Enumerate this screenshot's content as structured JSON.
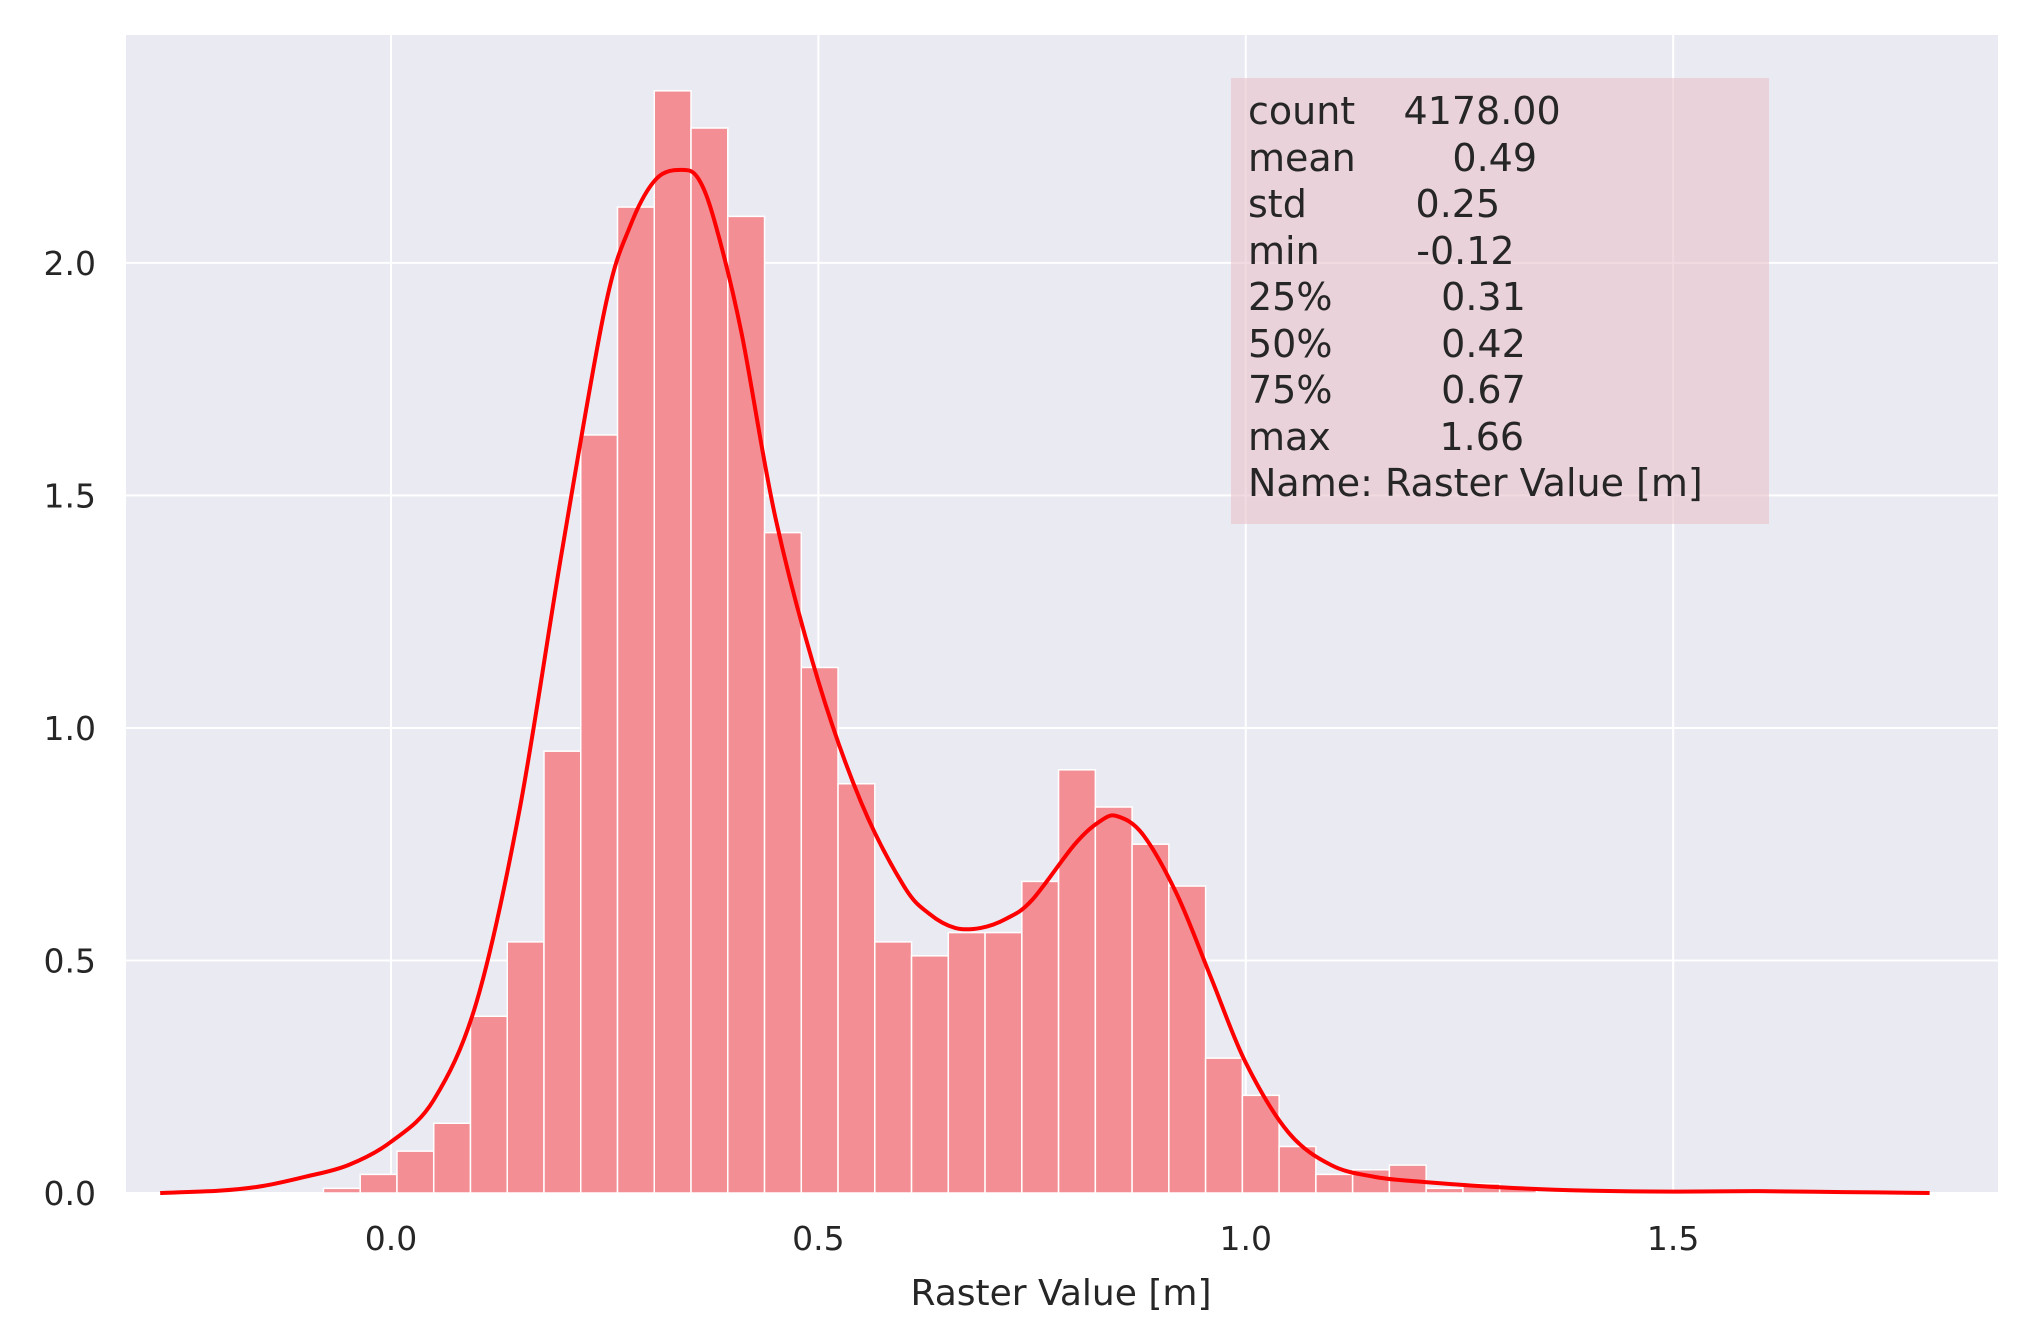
{
  "chart_data": {
    "type": "histogram",
    "xlabel": "Raster Value [m]",
    "ylabel": "",
    "title": "",
    "xlim": [
      -0.31,
      1.88
    ],
    "ylim": [
      0,
      2.49
    ],
    "x_ticks": [
      "0.0",
      "0.5",
      "1.0",
      "1.5"
    ],
    "x_tick_values": [
      0.0,
      0.5,
      1.0,
      1.5
    ],
    "y_ticks": [
      "0.0",
      "0.5",
      "1.0",
      "1.5",
      "2.0"
    ],
    "y_tick_values": [
      0.0,
      0.5,
      1.0,
      1.5,
      2.0
    ],
    "grid": true,
    "bar_color": "#f28e94",
    "kde_color": "#ff0000",
    "background_color": "#eaeaf2",
    "bins": [
      {
        "x0": -0.122,
        "x1": -0.079,
        "density": 0.0
      },
      {
        "x0": -0.079,
        "x1": -0.036,
        "density": 0.01
      },
      {
        "x0": -0.036,
        "x1": 0.007,
        "density": 0.04
      },
      {
        "x0": 0.007,
        "x1": 0.05,
        "density": 0.09
      },
      {
        "x0": 0.05,
        "x1": 0.093,
        "density": 0.15
      },
      {
        "x0": 0.093,
        "x1": 0.136,
        "density": 0.38
      },
      {
        "x0": 0.136,
        "x1": 0.179,
        "density": 0.54
      },
      {
        "x0": 0.179,
        "x1": 0.222,
        "density": 0.95
      },
      {
        "x0": 0.222,
        "x1": 0.265,
        "density": 1.63
      },
      {
        "x0": 0.265,
        "x1": 0.308,
        "density": 2.12
      },
      {
        "x0": 0.308,
        "x1": 0.351,
        "density": 2.37
      },
      {
        "x0": 0.351,
        "x1": 0.394,
        "density": 2.29
      },
      {
        "x0": 0.394,
        "x1": 0.437,
        "density": 2.1
      },
      {
        "x0": 0.437,
        "x1": 0.48,
        "density": 1.42
      },
      {
        "x0": 0.48,
        "x1": 0.523,
        "density": 1.13
      },
      {
        "x0": 0.523,
        "x1": 0.566,
        "density": 0.88
      },
      {
        "x0": 0.566,
        "x1": 0.609,
        "density": 0.54
      },
      {
        "x0": 0.609,
        "x1": 0.652,
        "density": 0.51
      },
      {
        "x0": 0.652,
        "x1": 0.695,
        "density": 0.56
      },
      {
        "x0": 0.695,
        "x1": 0.738,
        "density": 0.56
      },
      {
        "x0": 0.738,
        "x1": 0.781,
        "density": 0.67
      },
      {
        "x0": 0.781,
        "x1": 0.824,
        "density": 0.91
      },
      {
        "x0": 0.824,
        "x1": 0.867,
        "density": 0.83
      },
      {
        "x0": 0.867,
        "x1": 0.91,
        "density": 0.75
      },
      {
        "x0": 0.91,
        "x1": 0.953,
        "density": 0.66
      },
      {
        "x0": 0.953,
        "x1": 0.996,
        "density": 0.29
      },
      {
        "x0": 0.996,
        "x1": 1.039,
        "density": 0.21
      },
      {
        "x0": 1.039,
        "x1": 1.082,
        "density": 0.1
      },
      {
        "x0": 1.082,
        "x1": 1.125,
        "density": 0.04
      },
      {
        "x0": 1.125,
        "x1": 1.168,
        "density": 0.05
      },
      {
        "x0": 1.168,
        "x1": 1.211,
        "density": 0.06
      },
      {
        "x0": 1.211,
        "x1": 1.254,
        "density": 0.01
      },
      {
        "x0": 1.254,
        "x1": 1.297,
        "density": 0.02
      },
      {
        "x0": 1.297,
        "x1": 1.34,
        "density": 0.01
      },
      {
        "x0": 1.34,
        "x1": 1.383,
        "density": 0.0
      },
      {
        "x0": 1.383,
        "x1": 1.426,
        "density": 0.0
      },
      {
        "x0": 1.426,
        "x1": 1.469,
        "density": 0.0
      },
      {
        "x0": 1.469,
        "x1": 1.512,
        "density": 0.0
      },
      {
        "x0": 1.512,
        "x1": 1.555,
        "density": 0.0
      },
      {
        "x0": 1.555,
        "x1": 1.598,
        "density": 0.0
      },
      {
        "x0": 1.598,
        "x1": 1.641,
        "density": 0.0
      },
      {
        "x0": 1.641,
        "x1": 1.684,
        "density": 0.0
      }
    ],
    "kde": {
      "x": [
        -0.27,
        -0.2,
        -0.15,
        -0.1,
        -0.05,
        0.0,
        0.05,
        0.1,
        0.15,
        0.2,
        0.25,
        0.28,
        0.31,
        0.34,
        0.36,
        0.38,
        0.41,
        0.45,
        0.5,
        0.55,
        0.6,
        0.63,
        0.66,
        0.69,
        0.72,
        0.75,
        0.8,
        0.83,
        0.85,
        0.88,
        0.92,
        0.96,
        1.0,
        1.05,
        1.1,
        1.15,
        1.2,
        1.3,
        1.4,
        1.5,
        1.6,
        1.7,
        1.8
      ],
      "y": [
        0.0,
        0.005,
        0.015,
        0.035,
        0.06,
        0.11,
        0.2,
        0.41,
        0.82,
        1.38,
        1.9,
        2.08,
        2.18,
        2.2,
        2.18,
        2.08,
        1.85,
        1.45,
        1.1,
        0.84,
        0.66,
        0.6,
        0.57,
        0.57,
        0.59,
        0.63,
        0.75,
        0.8,
        0.81,
        0.77,
        0.64,
        0.46,
        0.28,
        0.13,
        0.06,
        0.035,
        0.025,
        0.012,
        0.005,
        0.003,
        0.004,
        0.002,
        0.0
      ]
    },
    "annotation_lines": [
      "count    4178.00",
      "mean        0.49",
      "std         0.25",
      "min        -0.12",
      "25%         0.31",
      "50%         0.42",
      "75%         0.67",
      "max         1.66",
      "Name: Raster Value [m]"
    ]
  }
}
